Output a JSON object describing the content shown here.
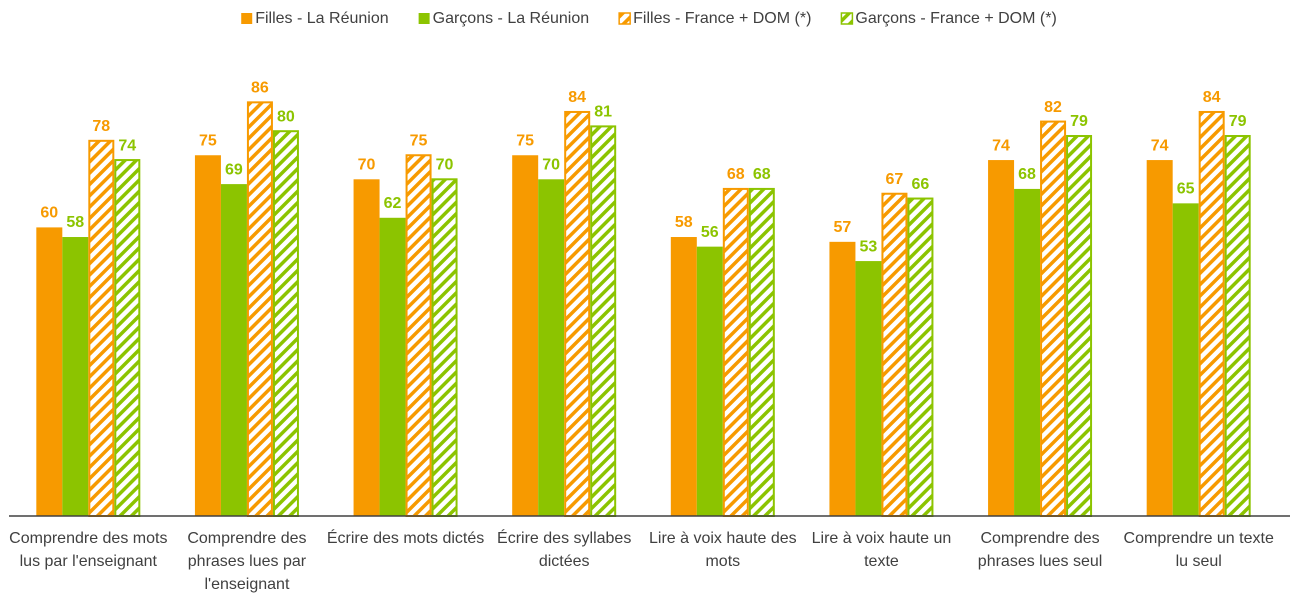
{
  "chart_data": {
    "type": "bar",
    "categories": [
      "Comprendre des mots lus par l'enseignant",
      "Comprendre des phrases lues par l'enseignant",
      "Écrire des mots dictés",
      "Écrire des syllabes dictées",
      "Lire à voix haute des mots",
      "Lire à voix haute un texte",
      "Comprendre des phrases lues seul",
      "Comprendre un texte lu seul"
    ],
    "series": [
      {
        "name": "Filles - La Réunion",
        "color": "#f79a00",
        "hatch": false,
        "values": [
          60,
          75,
          70,
          75,
          58,
          57,
          74,
          74
        ]
      },
      {
        "name": "Garçons - La Réunion",
        "color": "#8cc400",
        "hatch": false,
        "values": [
          58,
          69,
          62,
          70,
          56,
          53,
          68,
          65
        ]
      },
      {
        "name": "Filles - France + DOM (*)",
        "color": "#f79a00",
        "hatch": true,
        "values": [
          78,
          86,
          75,
          84,
          68,
          67,
          82,
          84
        ]
      },
      {
        "name": "Garçons - France + DOM (*)",
        "color": "#8cc400",
        "hatch": true,
        "values": [
          74,
          80,
          70,
          81,
          68,
          66,
          79,
          79
        ]
      }
    ],
    "ylim": [
      0,
      100
    ]
  }
}
